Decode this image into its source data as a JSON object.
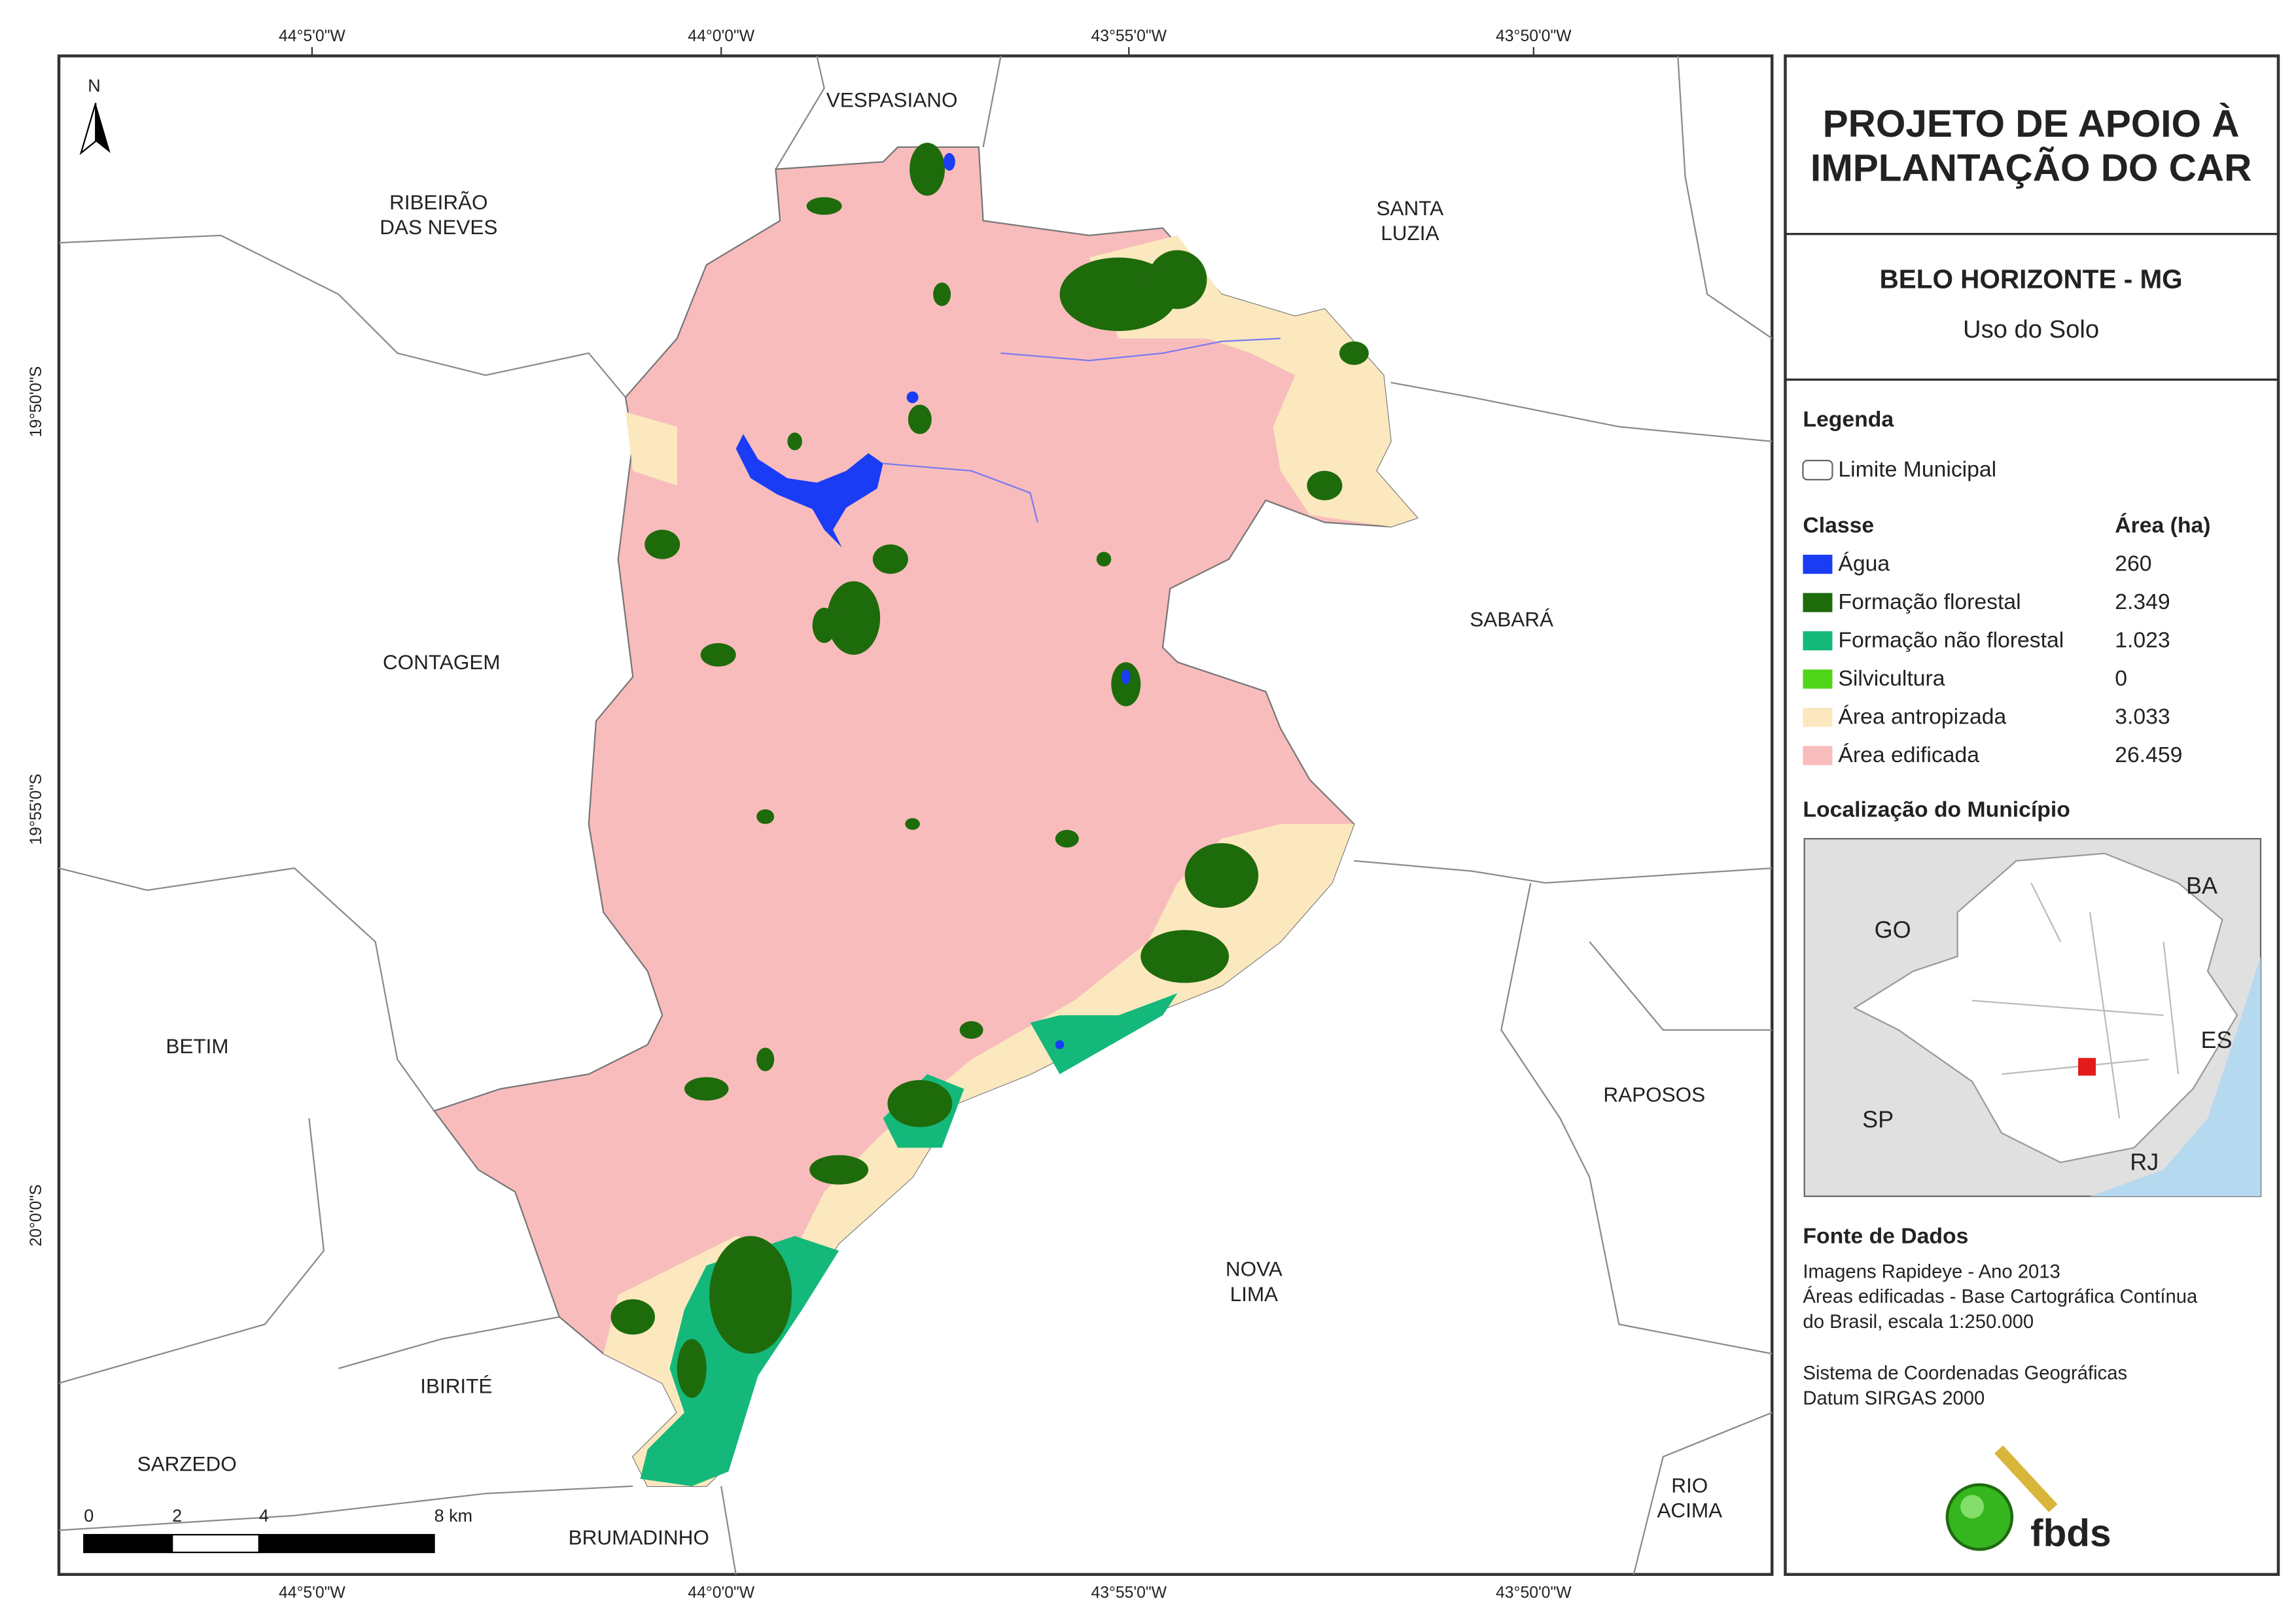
{
  "map": {
    "longitude_labels": [
      "44°5'0\"W",
      "44°0'0\"W",
      "43°55'0\"W",
      "43°50'0\"W"
    ],
    "latitude_labels": [
      "19°50'0\"S",
      "19°55'0\"S",
      "20°0'0\"S"
    ],
    "municipalities": [
      [
        "VESPASIANO"
      ],
      [
        "RIBEIRÃO",
        "DAS NEVES"
      ],
      [
        "SANTA",
        "LUZIA"
      ],
      [
        "SABARÁ"
      ],
      [
        "CONTAGEM"
      ],
      [
        "BETIM"
      ],
      [
        "RAPOSOS"
      ],
      [
        "NOVA",
        "LIMA"
      ],
      [
        "IBIRITÉ"
      ],
      [
        "SARZEDO"
      ],
      [
        "BRUMADINHO"
      ],
      [
        "RIO",
        "ACIMA"
      ]
    ],
    "scale_bar": [
      "0",
      "2",
      "4",
      "8 km"
    ],
    "north": "N"
  },
  "panel": {
    "title": [
      "PROJETO DE APOIO À",
      "IMPLANTAÇÃO DO CAR"
    ],
    "subtitle": "BELO HORIZONTE - MG",
    "theme": "Uso do Solo",
    "legend": {
      "heading": "Legenda",
      "boundary": "Limite Municipal",
      "class_header": "Classe",
      "area_header": "Área (ha)",
      "classes": [
        {
          "name": "Água",
          "color": "#1a3cf5",
          "area": "260"
        },
        {
          "name": "Formação florestal",
          "color": "#1e6b0c",
          "area": "2.349"
        },
        {
          "name": "Formação não florestal",
          "color": "#14b87a",
          "area": "1.023"
        },
        {
          "name": "Silvicultura",
          "color": "#4fd61a",
          "area": "0"
        },
        {
          "name": "Área antropizada",
          "color": "#fbe8bf",
          "area": "3.033"
        },
        {
          "name": "Área edificada",
          "color": "#f9bcbc",
          "area": "26.459"
        }
      ]
    },
    "location": {
      "heading": "Localização do Município",
      "states": [
        "GO",
        "BA",
        "ES",
        "SP",
        "RJ"
      ]
    },
    "source": {
      "heading": "Fonte de Dados",
      "lines": [
        "Imagens Rapideye - Ano 2013",
        "Áreas edificadas - Base Cartográfica Contínua",
        "do Brasil, escala 1:250.000",
        "Sistema de Coordenadas Geográficas",
        "Datum SIRGAS 2000"
      ]
    },
    "logo": "fbds"
  }
}
